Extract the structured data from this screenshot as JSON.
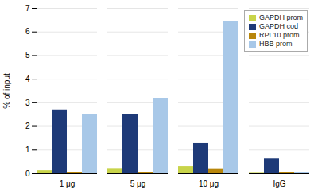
{
  "chart_data": {
    "type": "bar",
    "categories": [
      "1 μg",
      "5 μg",
      "10 μg",
      "IgG"
    ],
    "series": [
      {
        "name": "GAPDH prom",
        "color": "#c8d44a",
        "values": [
          0.13,
          0.19,
          0.3,
          0.02
        ]
      },
      {
        "name": "GAPDH cod",
        "color": "#1e3a78",
        "values": [
          2.7,
          2.52,
          1.28,
          0.63
        ]
      },
      {
        "name": "RPL10 prom",
        "color": "#b8860b",
        "values": [
          0.06,
          0.06,
          0.18,
          0.04
        ]
      },
      {
        "name": "HBB prom",
        "color": "#a8c8e8",
        "values": [
          2.52,
          3.17,
          6.43,
          0.05
        ]
      }
    ],
    "ylabel": "% of input",
    "ylim": [
      0,
      7
    ],
    "yticks": [
      0,
      1,
      2,
      3,
      4,
      5,
      6,
      7
    ],
    "grid": true,
    "legend": "upper right"
  }
}
